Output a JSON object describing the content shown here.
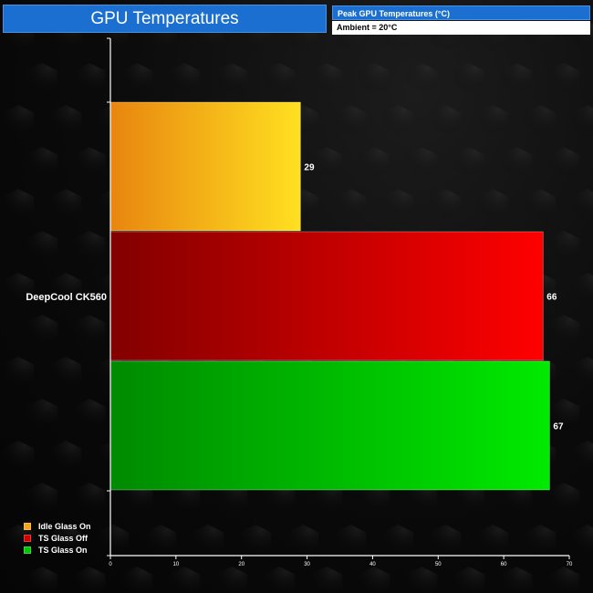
{
  "header": {
    "title": "GPU Temperatures",
    "info_title": "Peak GPU Temperatures (°C)",
    "info_sub": "Ambient = 20°C"
  },
  "chart_data": {
    "type": "bar",
    "orientation": "horizontal",
    "categories": [
      "DeepCool CK560"
    ],
    "series": [
      {
        "name": "Idle Glass On",
        "values": [
          29
        ],
        "color": "#f5a418",
        "gradient": [
          "#e8850f",
          "#ffe020"
        ]
      },
      {
        "name": "TS Glass Off",
        "values": [
          66
        ],
        "color": "#d00000",
        "gradient": [
          "#820000",
          "#ff0000"
        ]
      },
      {
        "name": "TS Glass On",
        "values": [
          67
        ],
        "color": "#00c800",
        "gradient": [
          "#008a00",
          "#00ea00"
        ]
      }
    ],
    "xlim": [
      0,
      70
    ],
    "xticks": [
      0,
      10,
      20,
      30,
      40,
      50,
      60,
      70
    ],
    "data_labels": true,
    "legend_position": "bottom-left",
    "grid": false
  }
}
